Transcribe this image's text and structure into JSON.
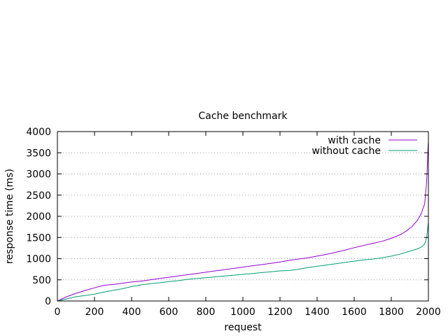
{
  "chart_data": {
    "type": "line",
    "title": "Cache benchmark",
    "xlabel": "request",
    "ylabel": "response time (ms)",
    "xlim": [
      0,
      2000
    ],
    "ylim": [
      0,
      4000
    ],
    "xticks": [
      0,
      200,
      400,
      600,
      800,
      1000,
      1200,
      1400,
      1600,
      1800,
      2000
    ],
    "yticks": [
      0,
      500,
      1000,
      1500,
      2000,
      2500,
      3000,
      3500,
      4000
    ],
    "grid": "horizontal dotted",
    "legend_position": "top-right",
    "series": [
      {
        "name": "with cache",
        "color": "#9400d3",
        "x": [
          0,
          50,
          100,
          150,
          200,
          250,
          300,
          350,
          400,
          450,
          500,
          550,
          600,
          650,
          700,
          750,
          800,
          850,
          900,
          950,
          1000,
          1050,
          1100,
          1150,
          1200,
          1250,
          1300,
          1350,
          1400,
          1450,
          1500,
          1550,
          1600,
          1650,
          1700,
          1750,
          1800,
          1850,
          1880,
          1910,
          1940,
          1960,
          1980,
          1990,
          1995,
          1999
        ],
        "y": [
          0,
          100,
          180,
          250,
          310,
          370,
          390,
          420,
          450,
          470,
          500,
          530,
          560,
          590,
          620,
          650,
          680,
          710,
          740,
          770,
          800,
          830,
          860,
          890,
          920,
          960,
          990,
          1020,
          1060,
          1100,
          1150,
          1200,
          1260,
          1310,
          1360,
          1410,
          1480,
          1570,
          1650,
          1750,
          1900,
          2050,
          2300,
          2800,
          3300,
          3720
        ]
      },
      {
        "name": "without cache",
        "color": "#009e73",
        "x": [
          0,
          50,
          100,
          150,
          200,
          250,
          300,
          350,
          400,
          450,
          500,
          550,
          600,
          650,
          700,
          750,
          800,
          850,
          900,
          950,
          1000,
          1050,
          1100,
          1150,
          1200,
          1250,
          1300,
          1350,
          1400,
          1450,
          1500,
          1550,
          1600,
          1650,
          1700,
          1750,
          1800,
          1850,
          1880,
          1910,
          1940,
          1960,
          1975,
          1985,
          1992,
          1999
        ],
        "y": [
          0,
          50,
          100,
          130,
          160,
          210,
          250,
          290,
          340,
          380,
          410,
          430,
          460,
          480,
          510,
          530,
          550,
          570,
          590,
          610,
          630,
          650,
          670,
          690,
          710,
          720,
          750,
          790,
          820,
          850,
          880,
          910,
          940,
          970,
          990,
          1020,
          1060,
          1110,
          1150,
          1190,
          1230,
          1270,
          1320,
          1400,
          1550,
          1830
        ]
      }
    ]
  }
}
